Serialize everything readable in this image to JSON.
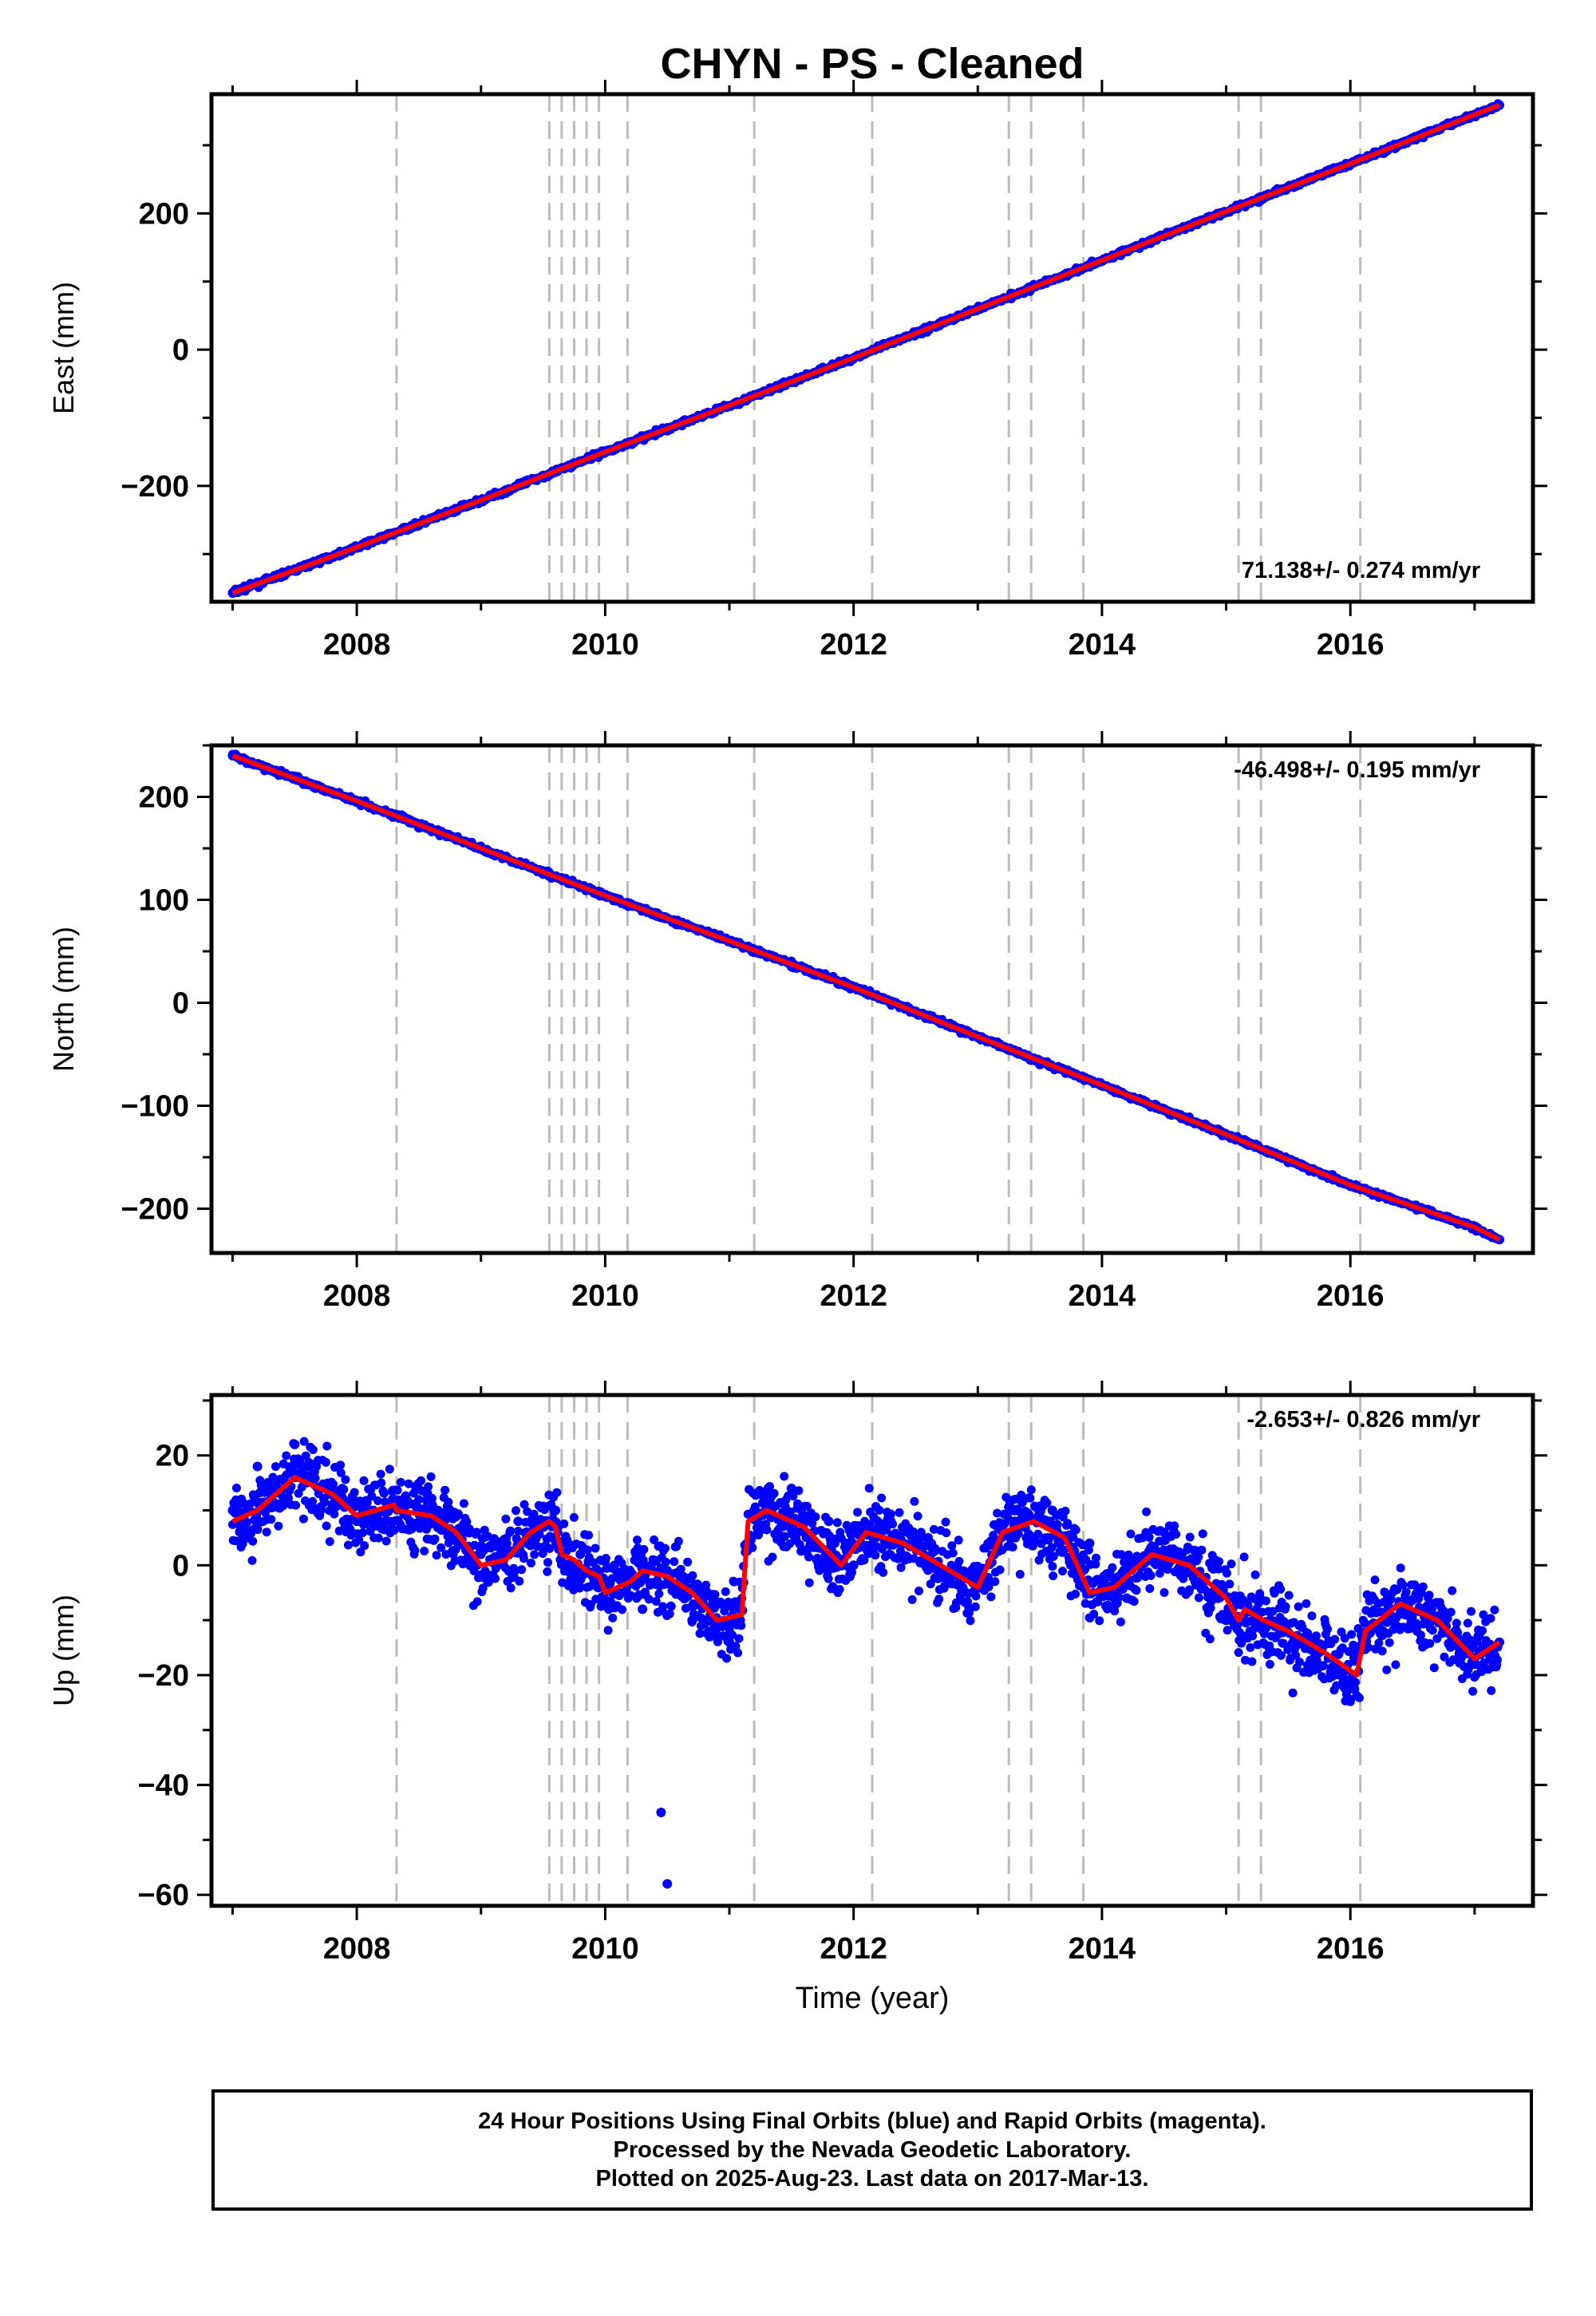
{
  "title": "CHYN  - PS - Cleaned",
  "colors": {
    "points": "#0000ff",
    "fit": "#ff0000",
    "steps": "#bbbbbb",
    "axis": "#000000"
  },
  "footer": {
    "line1": "24 Hour Positions Using Final Orbits (blue) and Rapid Orbits (magenta).",
    "line2": "Processed by the Nevada Geodetic Laboratory.",
    "line3": "Plotted on 2025-Aug-23. Last data on 2017-Mar-13."
  },
  "chart_data": [
    {
      "type": "scatter",
      "ylabel": "East (mm)",
      "xlabel": "",
      "rate_label": "71.138+/- 0.274 mm/yr",
      "rate_position": "bottom-right",
      "xlim": [
        2006.83,
        2017.47
      ],
      "ylim": [
        -370,
        375
      ],
      "xticks": [
        2008,
        2010,
        2012,
        2014,
        2016
      ],
      "yticks": [
        -200,
        0,
        200
      ],
      "grid": false,
      "series": [
        {
          "kind": "points",
          "x": [
            2007.0,
            2007.5,
            2008.0,
            2008.5,
            2009.0,
            2009.5,
            2010.0,
            2010.5,
            2011.0,
            2011.5,
            2012.0,
            2012.5,
            2013.0,
            2013.5,
            2014.0,
            2014.5,
            2015.0,
            2015.5,
            2016.0,
            2016.5,
            2017.0,
            2017.2
          ],
          "y": [
            -357,
            -322,
            -291,
            -258,
            -222,
            -188,
            -151,
            -119,
            -83,
            -48,
            -13,
            23,
            59,
            95,
            130,
            166,
            202,
            238,
            272,
            308,
            344,
            359
          ]
        },
        {
          "kind": "line",
          "x": [
            2007.0,
            2008.0,
            2009.0,
            2010.0,
            2011.0,
            2012.0,
            2013.0,
            2014.0,
            2015.0,
            2016.0,
            2017.0,
            2017.2
          ],
          "y": [
            -357,
            -290,
            -221,
            -150,
            -82,
            -12,
            60,
            131,
            203,
            273,
            345,
            359
          ]
        }
      ]
    },
    {
      "type": "scatter",
      "ylabel": "North (mm)",
      "xlabel": "",
      "rate_label": "-46.498+/- 0.195 mm/yr",
      "rate_position": "top-right",
      "xlim": [
        2006.83,
        2017.47
      ],
      "ylim": [
        -243,
        250
      ],
      "xticks": [
        2008,
        2010,
        2012,
        2014,
        2016
      ],
      "yticks": [
        -200,
        -100,
        0,
        100,
        200
      ],
      "grid": false,
      "series": [
        {
          "kind": "points",
          "x": [
            2007.0,
            2007.5,
            2008.0,
            2008.5,
            2009.0,
            2009.5,
            2010.0,
            2010.5,
            2011.0,
            2011.5,
            2012.0,
            2012.5,
            2013.0,
            2013.5,
            2014.0,
            2014.5,
            2015.0,
            2015.5,
            2016.0,
            2016.5,
            2017.0,
            2017.2
          ],
          "y": [
            240,
            220,
            196,
            170,
            150,
            125,
            104,
            82,
            60,
            35,
            15,
            -10,
            -33,
            -60,
            -80,
            -103,
            -128,
            -155,
            -177,
            -197,
            -218,
            -230
          ]
        },
        {
          "kind": "line",
          "x": [
            2007.0,
            2008.0,
            2009.0,
            2010.0,
            2011.0,
            2012.0,
            2013.0,
            2014.0,
            2015.0,
            2016.0,
            2017.0,
            2017.2
          ],
          "y": [
            240,
            196,
            150,
            104,
            60,
            15,
            -33,
            -80,
            -128,
            -177,
            -218,
            -230
          ]
        }
      ]
    },
    {
      "type": "scatter",
      "ylabel": "Up (mm)",
      "xlabel": "Time (year)",
      "rate_label": "-2.653+/- 0.826 mm/yr",
      "rate_position": "top-right",
      "xlim": [
        2006.83,
        2017.47
      ],
      "ylim": [
        -62,
        31
      ],
      "xticks": [
        2008,
        2010,
        2012,
        2014,
        2016
      ],
      "yticks": [
        -60,
        -40,
        -20,
        0,
        20
      ],
      "grid": false,
      "series": [
        {
          "kind": "points",
          "x": [
            2007.0,
            2007.2,
            2007.5,
            2007.8,
            2008.0,
            2008.3,
            2008.6,
            2009.0,
            2009.3,
            2009.6,
            2009.8,
            2010.0,
            2010.3,
            2010.45,
            2010.5,
            2010.7,
            2011.0,
            2011.2,
            2011.5,
            2011.8,
            2012.0,
            2012.3,
            2012.6,
            2013.0,
            2013.3,
            2013.6,
            2013.9,
            2014.2,
            2014.5,
            2014.8,
            2015.0,
            2015.3,
            2015.6,
            2016.0,
            2016.3,
            2016.6,
            2017.0,
            2017.2
          ],
          "y": [
            10,
            18,
            22,
            14,
            8,
            12,
            10,
            2,
            8,
            10,
            2,
            -4,
            -8,
            -45,
            -58,
            -10,
            -14,
            10,
            14,
            8,
            0,
            8,
            5,
            -2,
            8,
            10,
            4,
            -6,
            6,
            -4,
            -10,
            -12,
            -14,
            -22,
            -6,
            -8,
            -18,
            -14
          ]
        },
        {
          "kind": "line",
          "x": [
            2007.0,
            2007.2,
            2007.5,
            2007.8,
            2008.0,
            2008.3,
            2008.32,
            2008.6,
            2008.8,
            2009.0,
            2009.2,
            2009.4,
            2009.55,
            2009.6,
            2009.65,
            2009.75,
            2009.85,
            2009.95,
            2010.0,
            2010.1,
            2010.2,
            2010.3,
            2010.5,
            2010.7,
            2010.9,
            2011.1,
            2011.15,
            2011.3,
            2011.6,
            2011.9,
            2012.1,
            2012.4,
            2012.7,
            2013.0,
            2013.2,
            2013.45,
            2013.7,
            2013.9,
            2014.1,
            2014.4,
            2014.7,
            2015.0,
            2015.1,
            2015.15,
            2015.3,
            2015.5,
            2015.8,
            2016.05,
            2016.12,
            2016.4,
            2016.7,
            2017.0,
            2017.2
          ],
          "y": [
            8,
            10,
            16,
            13,
            9,
            11,
            10,
            9,
            6,
            0,
            1,
            6,
            8,
            7,
            2,
            1,
            -1,
            -2,
            -5,
            -4,
            -3,
            -1,
            -2,
            -5,
            -10,
            -9,
            8,
            10,
            7,
            0,
            6,
            4,
            0,
            -4,
            6,
            8,
            5,
            -5,
            -4,
            2,
            0,
            -6,
            -10,
            -8,
            -10,
            -12,
            -16,
            -20,
            -12,
            -7,
            -10,
            -17,
            -14
          ]
        }
      ]
    }
  ],
  "steps": [
    2008.32,
    2009.55,
    2009.65,
    2009.75,
    2009.85,
    2009.95,
    2010.18,
    2011.2,
    2012.15,
    2013.25,
    2013.43,
    2013.85,
    2015.1,
    2015.28,
    2016.08
  ]
}
